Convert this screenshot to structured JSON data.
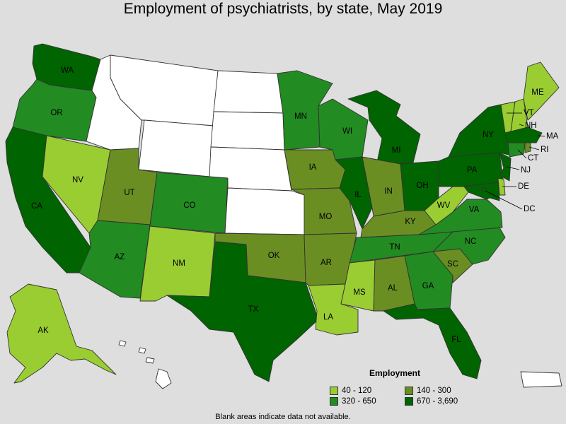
{
  "title": "Employment of psychiatrists, by state, May 2019",
  "footnote": "Blank areas indicate data not available.",
  "legend": {
    "title": "Employment",
    "bins": [
      {
        "label": "40 - 120",
        "color": "#9acd32"
      },
      {
        "label": "140 - 300",
        "color": "#6b8e23"
      },
      {
        "label": "320 - 650",
        "color": "#228b22"
      },
      {
        "label": "670 - 3,690",
        "color": "#006400"
      }
    ]
  },
  "colors": {
    "na": "#ffffff",
    "background": "#dedede",
    "border": "#333333"
  },
  "states": {
    "WA": {
      "bin": 3
    },
    "OR": {
      "bin": 2
    },
    "CA": {
      "bin": 3
    },
    "NV": {
      "bin": 0
    },
    "ID": {
      "bin": null
    },
    "MT": {
      "bin": null
    },
    "WY": {
      "bin": null
    },
    "UT": {
      "bin": 1
    },
    "AZ": {
      "bin": 2
    },
    "CO": {
      "bin": 2
    },
    "NM": {
      "bin": 0
    },
    "ND": {
      "bin": null
    },
    "SD": {
      "bin": null
    },
    "NE": {
      "bin": null
    },
    "KS": {
      "bin": null
    },
    "OK": {
      "bin": 1
    },
    "TX": {
      "bin": 3
    },
    "MN": {
      "bin": 2
    },
    "IA": {
      "bin": 1
    },
    "MO": {
      "bin": 1
    },
    "AR": {
      "bin": 1
    },
    "LA": {
      "bin": 0
    },
    "WI": {
      "bin": 2
    },
    "IL": {
      "bin": 3
    },
    "MI": {
      "bin": 3
    },
    "IN": {
      "bin": 1
    },
    "OH": {
      "bin": 3
    },
    "KY": {
      "bin": 1
    },
    "TN": {
      "bin": 2
    },
    "MS": {
      "bin": 0
    },
    "AL": {
      "bin": 1
    },
    "GA": {
      "bin": 2
    },
    "FL": {
      "bin": 3
    },
    "SC": {
      "bin": 1
    },
    "NC": {
      "bin": 2
    },
    "VA": {
      "bin": 2
    },
    "WV": {
      "bin": 0
    },
    "PA": {
      "bin": 3
    },
    "NY": {
      "bin": 3
    },
    "ME": {
      "bin": 0
    },
    "VT": {
      "bin": 0
    },
    "NH": {
      "bin": 0
    },
    "MA": {
      "bin": 3
    },
    "RI": {
      "bin": 1
    },
    "CT": {
      "bin": 2
    },
    "NJ": {
      "bin": 3
    },
    "DE": {
      "bin": 0
    },
    "MD": {
      "bin": 3
    },
    "DC": {
      "bin": 3
    },
    "AK": {
      "bin": 0
    },
    "HI": {
      "bin": null
    },
    "PR": {
      "bin": null
    }
  },
  "labels": {
    "WA": "WA",
    "OR": "OR",
    "CA": "CA",
    "NV": "NV",
    "UT": "UT",
    "AZ": "AZ",
    "CO": "CO",
    "NM": "NM",
    "OK": "OK",
    "TX": "TX",
    "MN": "MN",
    "IA": "IA",
    "MO": "MO",
    "AR": "AR",
    "LA": "LA",
    "WI": "WI",
    "IL": "IL",
    "MI": "MI",
    "IN": "IN",
    "OH": "OH",
    "KY": "KY",
    "TN": "TN",
    "MS": "MS",
    "AL": "AL",
    "GA": "GA",
    "FL": "FL",
    "SC": "SC",
    "NC": "NC",
    "VA": "VA",
    "WV": "WV",
    "PA": "PA",
    "NY": "NY",
    "ME": "ME",
    "VT": "VT",
    "NH": "NH",
    "MA": "MA",
    "RI": "RI",
    "CT": "CT",
    "NJ": "NJ",
    "DE": "DE",
    "DC": "DC",
    "AK": "AK"
  }
}
